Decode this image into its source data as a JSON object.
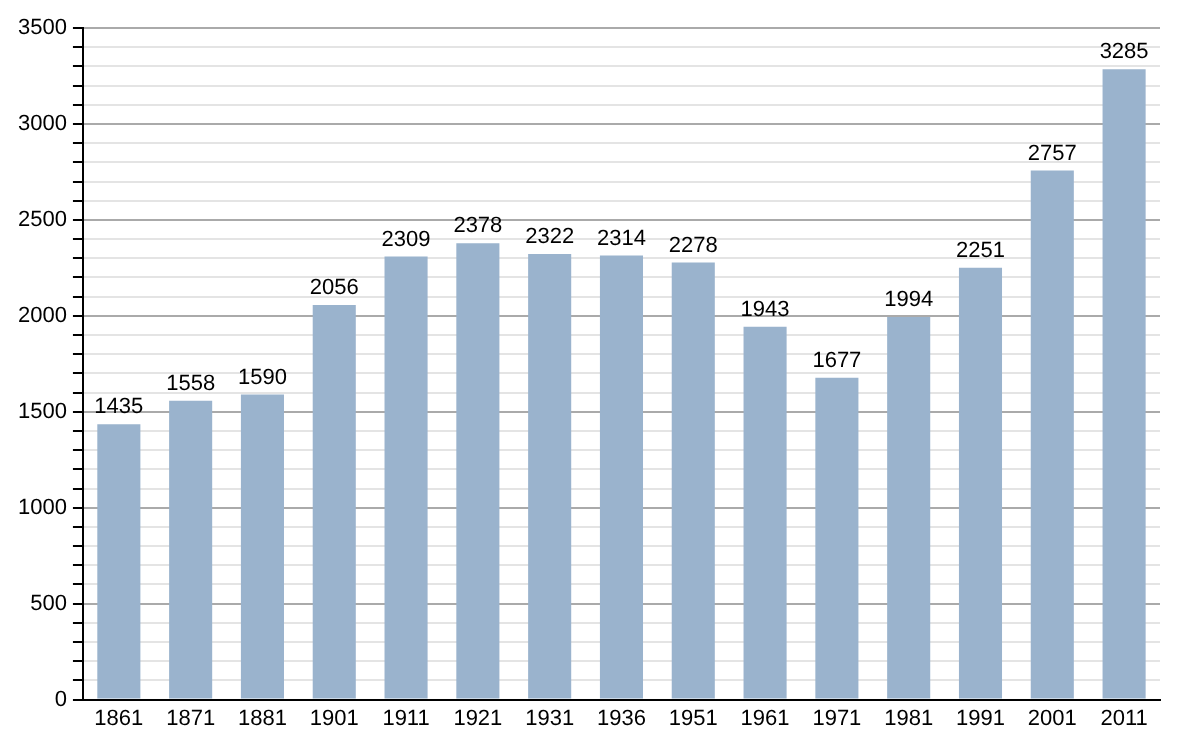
{
  "chart_data": {
    "type": "bar",
    "categories": [
      "1861",
      "1871",
      "1881",
      "1901",
      "1911",
      "1921",
      "1931",
      "1936",
      "1951",
      "1961",
      "1971",
      "1981",
      "1991",
      "2001",
      "2011"
    ],
    "values": [
      1435,
      1558,
      1590,
      2056,
      2309,
      2378,
      2322,
      2314,
      2278,
      1943,
      1677,
      1994,
      2251,
      2757,
      3285
    ],
    "color": "#9ab3cd",
    "ylim": [
      0,
      3500
    ],
    "yticks": [
      0,
      {
        "value": 100,
        "label": null
      },
      {
        "value": 200,
        "label": null
      },
      {
        "value": 300,
        "label": null
      },
      {
        "value": 400,
        "label": null
      },
      500,
      {
        "value": 600,
        "label": null
      },
      {
        "value": 700,
        "label": null
      },
      {
        "value": 800,
        "label": null
      },
      {
        "value": 900,
        "label": null
      },
      1000,
      {
        "value": 1100,
        "label": null
      },
      {
        "value": 1200,
        "label": null
      },
      {
        "value": 1300,
        "label": null
      },
      {
        "value": 1400,
        "label": null
      },
      1500,
      {
        "value": 1600,
        "label": null
      },
      {
        "value": 1700,
        "label": null
      },
      {
        "value": 1800,
        "label": null
      },
      {
        "value": 1900,
        "label": null
      },
      2000,
      {
        "value": 2100,
        "label": null
      },
      {
        "value": 2200,
        "label": null
      },
      {
        "value": 2300,
        "label": null
      },
      {
        "value": 2400,
        "label": null
      },
      2500,
      {
        "value": 2600,
        "label": null
      },
      {
        "value": 2700,
        "label": null
      },
      {
        "value": 2800,
        "label": null
      },
      {
        "value": 2900,
        "label": null
      },
      3000,
      {
        "value": 3100,
        "label": null
      },
      {
        "value": 3200,
        "label": null
      },
      {
        "value": 3300,
        "label": null
      },
      {
        "value": 3400,
        "label": null
      },
      3500
    ],
    "grid": true,
    "data_labels": true
  }
}
